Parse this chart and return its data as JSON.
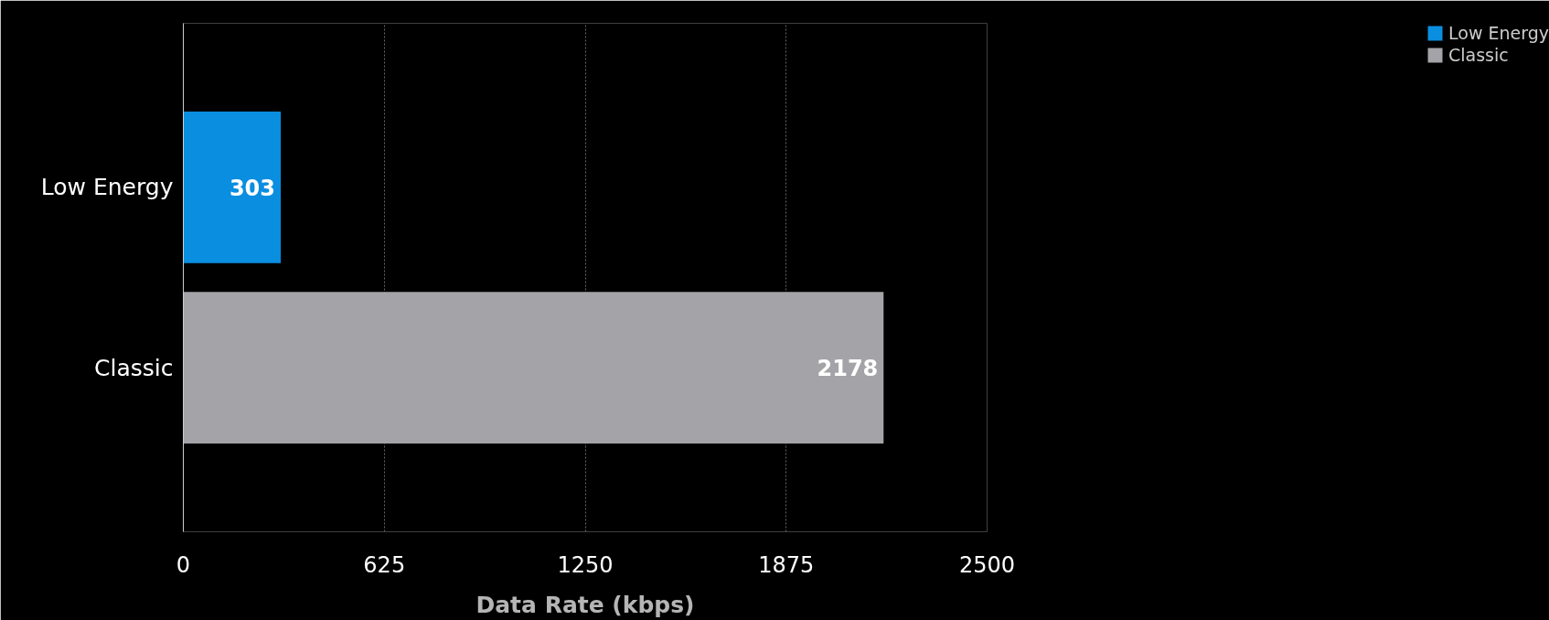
{
  "chart_data": {
    "type": "bar",
    "orientation": "horizontal",
    "xlabel": "Data Rate (kbps)",
    "categories": [
      "Low Energy",
      "Classic"
    ],
    "series": [
      {
        "name": "Low Energy",
        "color": "#0a8ee0",
        "values": [
          303,
          null
        ]
      },
      {
        "name": "Classic",
        "color": "#a4a3a7",
        "values": [
          null,
          2178
        ]
      }
    ],
    "xlim": [
      0,
      2500
    ],
    "xticks": [
      0,
      625,
      1250,
      1875,
      2500
    ],
    "grid": "x",
    "legend": "top right",
    "data_labels": true
  }
}
